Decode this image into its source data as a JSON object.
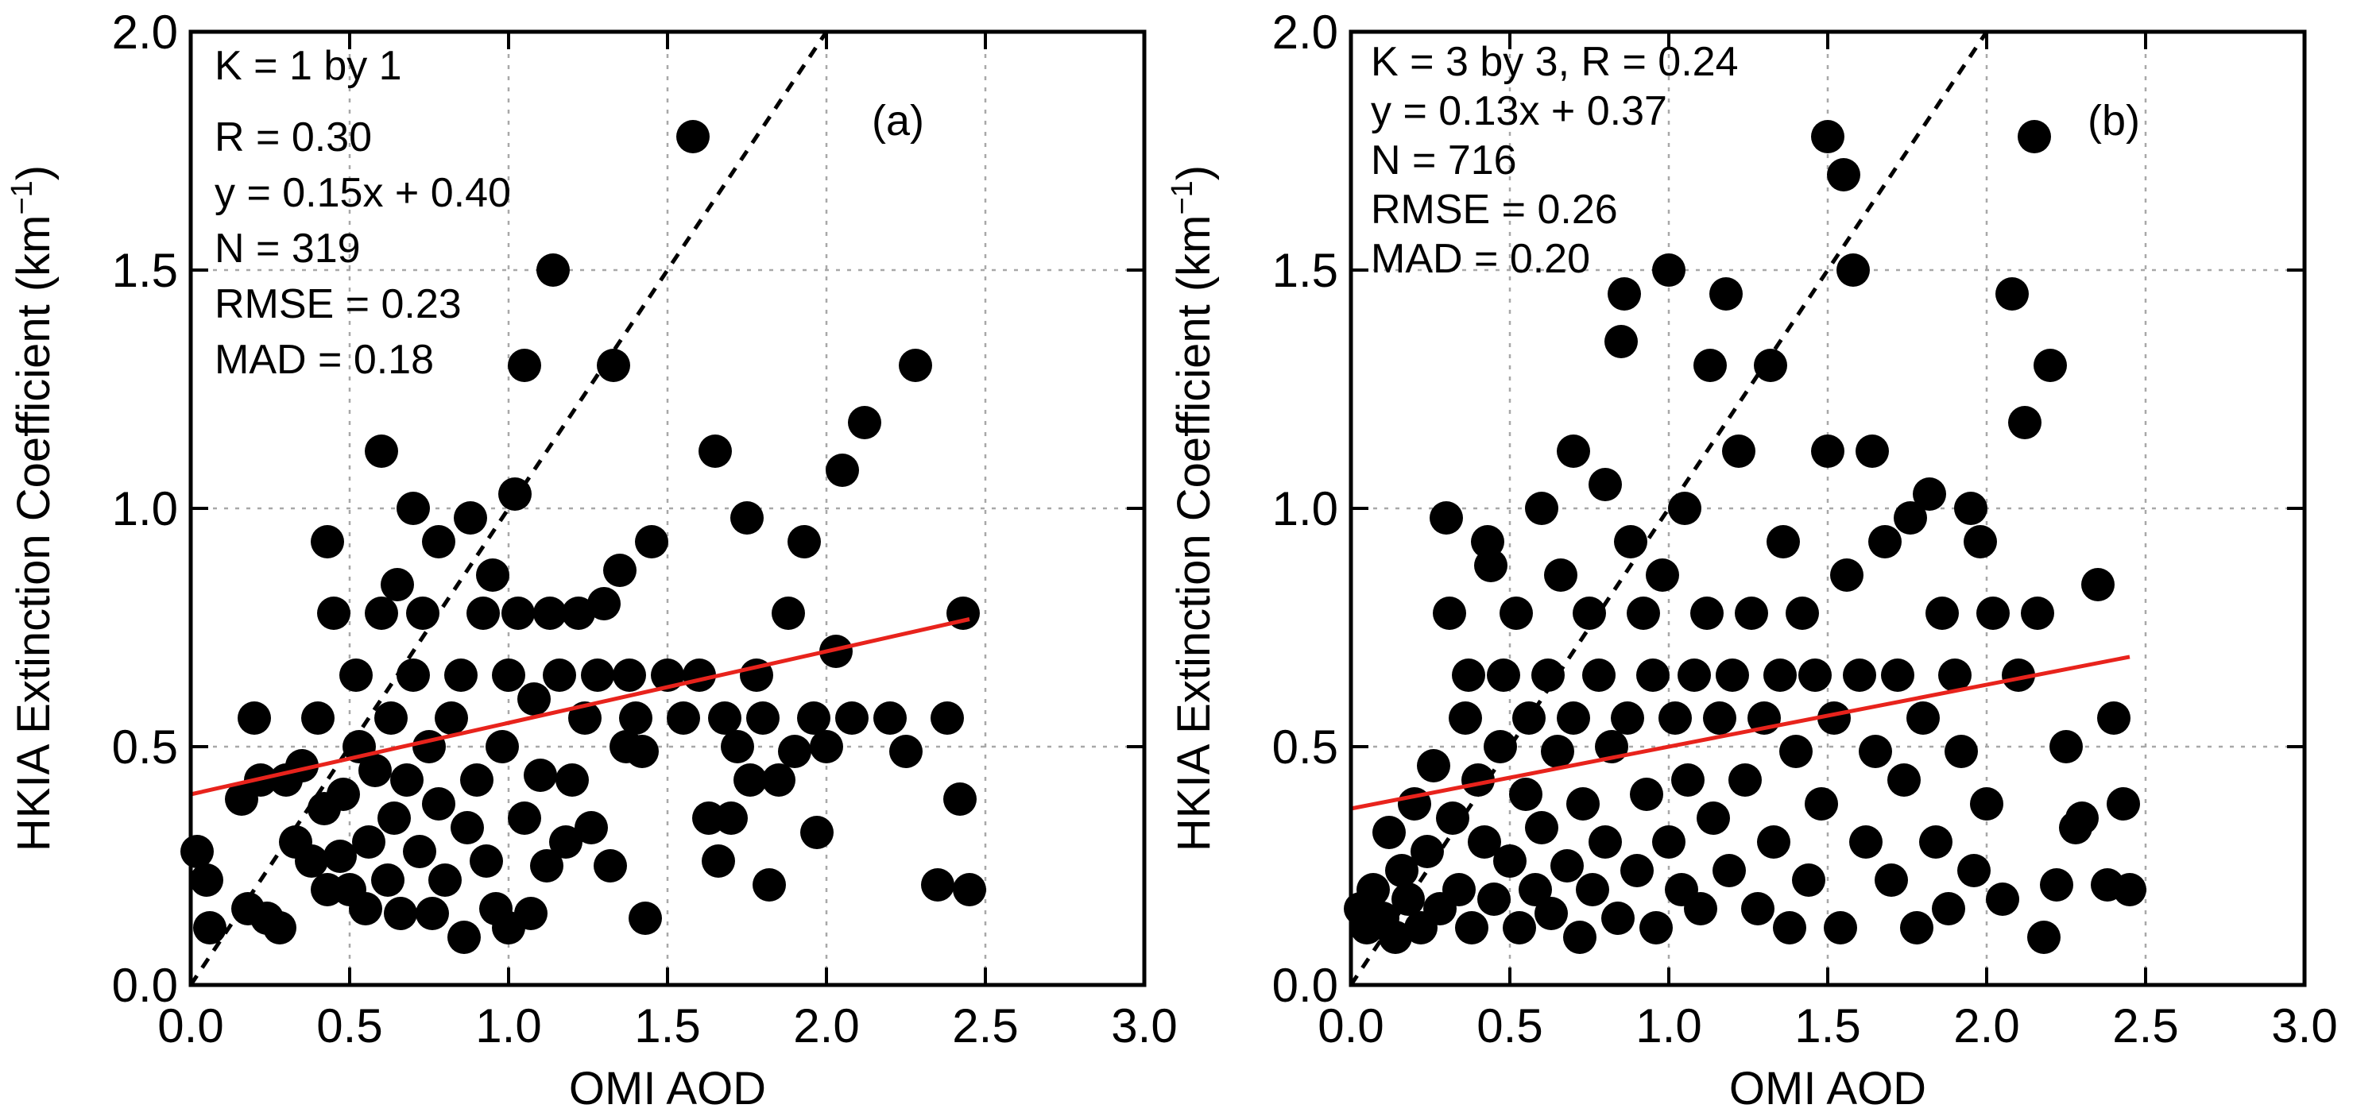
{
  "figure_type": "paired scatter plots",
  "colors": {
    "marker": "#000000",
    "fit_line": "#e8231c",
    "identity_line": "#000000",
    "grid": "#a8a8a8",
    "axes": "#000000",
    "background": "#ffffff"
  },
  "chart_data": [
    {
      "type": "scatter",
      "panel_label": "(a)",
      "xlabel": "OMI AOD",
      "ylabel": "HKIA Extinction Coefficient (km",
      "ylabel_sup": "−1",
      "ylabel_close": ")",
      "xlim": [
        0,
        3
      ],
      "ylim": [
        0,
        2
      ],
      "xticks": [
        0,
        0.5,
        1,
        1.5,
        2,
        2.5,
        3
      ],
      "xtick_labels": [
        "0.0",
        "0.5",
        "1.0",
        "1.5",
        "2.0",
        "2.5",
        "3.0"
      ],
      "yticks": [
        0,
        0.5,
        1,
        1.5,
        2
      ],
      "ytick_labels": [
        "0.0",
        "0.5",
        "1.0",
        "1.5",
        "2.0"
      ],
      "grid": true,
      "stats_text": [
        "K = 1 by 1",
        "R = 0.30",
        "y = 0.15x + 0.40",
        "N = 319",
        "RMSE = 0.23",
        "MAD = 0.18"
      ],
      "stats": {
        "K": "1 by 1",
        "R": 0.3,
        "slope": 0.15,
        "intercept": 0.4,
        "N": 319,
        "RMSE": 0.23,
        "MAD": 0.18
      },
      "fit_line": {
        "slope": 0.15,
        "intercept": 0.4,
        "x_range": [
          0,
          2.45
        ]
      },
      "identity_line": {
        "slope": 1,
        "intercept": 0
      },
      "points": [
        [
          0.02,
          0.28
        ],
        [
          0.05,
          0.22
        ],
        [
          0.06,
          0.12
        ],
        [
          0.16,
          0.39
        ],
        [
          0.18,
          0.16
        ],
        [
          0.2,
          0.56
        ],
        [
          0.22,
          0.43
        ],
        [
          0.24,
          0.14
        ],
        [
          0.28,
          0.12
        ],
        [
          0.3,
          0.43
        ],
        [
          0.33,
          0.3
        ],
        [
          0.35,
          0.46
        ],
        [
          0.38,
          0.26
        ],
        [
          0.4,
          0.56
        ],
        [
          0.42,
          0.37
        ],
        [
          0.43,
          0.2
        ],
        [
          0.43,
          0.93
        ],
        [
          0.45,
          0.78
        ],
        [
          0.47,
          0.27
        ],
        [
          0.48,
          0.4
        ],
        [
          0.5,
          0.2
        ],
        [
          0.52,
          0.65
        ],
        [
          0.53,
          0.5
        ],
        [
          0.55,
          0.16
        ],
        [
          0.56,
          0.3
        ],
        [
          0.58,
          0.45
        ],
        [
          0.6,
          0.78
        ],
        [
          0.6,
          1.12
        ],
        [
          0.62,
          0.22
        ],
        [
          0.63,
          0.56
        ],
        [
          0.64,
          0.35
        ],
        [
          0.65,
          0.84
        ],
        [
          0.66,
          0.15
        ],
        [
          0.68,
          0.43
        ],
        [
          0.7,
          0.65
        ],
        [
          0.7,
          1.0
        ],
        [
          0.72,
          0.28
        ],
        [
          0.73,
          0.78
        ],
        [
          0.75,
          0.5
        ],
        [
          0.76,
          0.15
        ],
        [
          0.78,
          0.38
        ],
        [
          0.78,
          0.93
        ],
        [
          0.8,
          0.22
        ],
        [
          0.82,
          0.56
        ],
        [
          0.85,
          0.65
        ],
        [
          0.86,
          0.1
        ],
        [
          0.87,
          0.33
        ],
        [
          0.88,
          0.98
        ],
        [
          0.9,
          0.43
        ],
        [
          0.92,
          0.78
        ],
        [
          0.93,
          0.26
        ],
        [
          0.95,
          0.86
        ],
        [
          0.96,
          0.16
        ],
        [
          0.98,
          0.5
        ],
        [
          1.0,
          0.65
        ],
        [
          1.0,
          0.12
        ],
        [
          1.02,
          1.03
        ],
        [
          1.03,
          0.78
        ],
        [
          1.05,
          0.35
        ],
        [
          1.05,
          1.3
        ],
        [
          1.07,
          0.15
        ],
        [
          1.08,
          0.6
        ],
        [
          1.1,
          0.44
        ],
        [
          1.12,
          0.25
        ],
        [
          1.13,
          0.78
        ],
        [
          1.14,
          1.5
        ],
        [
          1.16,
          0.65
        ],
        [
          1.18,
          0.3
        ],
        [
          1.2,
          0.43
        ],
        [
          1.22,
          0.78
        ],
        [
          1.24,
          0.56
        ],
        [
          1.26,
          0.33
        ],
        [
          1.28,
          0.65
        ],
        [
          1.3,
          0.8
        ],
        [
          1.32,
          0.25
        ],
        [
          1.33,
          1.3
        ],
        [
          1.35,
          0.87
        ],
        [
          1.37,
          0.5
        ],
        [
          1.38,
          0.65
        ],
        [
          1.4,
          0.56
        ],
        [
          1.42,
          0.49
        ],
        [
          1.43,
          0.14
        ],
        [
          1.45,
          0.93
        ],
        [
          1.5,
          0.65
        ],
        [
          1.55,
          0.56
        ],
        [
          1.58,
          1.78
        ],
        [
          1.6,
          0.65
        ],
        [
          1.63,
          0.35
        ],
        [
          1.65,
          1.12
        ],
        [
          1.66,
          0.26
        ],
        [
          1.68,
          0.56
        ],
        [
          1.7,
          0.35
        ],
        [
          1.72,
          0.5
        ],
        [
          1.75,
          0.98
        ],
        [
          1.76,
          0.43
        ],
        [
          1.78,
          0.65
        ],
        [
          1.8,
          0.56
        ],
        [
          1.82,
          0.21
        ],
        [
          1.85,
          0.43
        ],
        [
          1.88,
          0.78
        ],
        [
          1.9,
          0.49
        ],
        [
          1.93,
          0.93
        ],
        [
          1.96,
          0.56
        ],
        [
          1.97,
          0.32
        ],
        [
          2.0,
          0.5
        ],
        [
          2.03,
          0.7
        ],
        [
          2.05,
          1.08
        ],
        [
          2.08,
          0.56
        ],
        [
          2.12,
          1.18
        ],
        [
          2.2,
          0.56
        ],
        [
          2.25,
          0.49
        ],
        [
          2.28,
          1.3
        ],
        [
          2.35,
          0.21
        ],
        [
          2.38,
          0.56
        ],
        [
          2.42,
          0.39
        ],
        [
          2.43,
          0.78
        ],
        [
          2.45,
          0.2
        ]
      ]
    },
    {
      "type": "scatter",
      "panel_label": "(b)",
      "xlabel": "OMI AOD",
      "ylabel": "HKIA Extinction Coefficient (km",
      "ylabel_sup": "−1",
      "ylabel_close": ")",
      "xlim": [
        0,
        3
      ],
      "ylim": [
        0,
        2
      ],
      "xticks": [
        0,
        0.5,
        1,
        1.5,
        2,
        2.5,
        3
      ],
      "xtick_labels": [
        "0.0",
        "0.5",
        "1.0",
        "1.5",
        "2.0",
        "2.5",
        "3.0"
      ],
      "yticks": [
        0,
        0.5,
        1,
        1.5,
        2
      ],
      "ytick_labels": [
        "0.0",
        "0.5",
        "1.0",
        "1.5",
        "2.0"
      ],
      "grid": true,
      "stats_text": [
        "K = 3 by 3, R = 0.24",
        "y = 0.13x + 0.37",
        "N = 716",
        "RMSE = 0.26",
        "MAD = 0.20"
      ],
      "stats": {
        "K": "3 by 3",
        "R": 0.24,
        "slope": 0.13,
        "intercept": 0.37,
        "N": 716,
        "RMSE": 0.26,
        "MAD": 0.2
      },
      "fit_line": {
        "slope": 0.13,
        "intercept": 0.37,
        "x_range": [
          0,
          2.45
        ]
      },
      "identity_line": {
        "slope": 1,
        "intercept": 0
      },
      "points": [
        [
          0.03,
          0.16
        ],
        [
          0.05,
          0.12
        ],
        [
          0.07,
          0.2
        ],
        [
          0.1,
          0.14
        ],
        [
          0.12,
          0.32
        ],
        [
          0.14,
          0.1
        ],
        [
          0.16,
          0.24
        ],
        [
          0.18,
          0.18
        ],
        [
          0.2,
          0.38
        ],
        [
          0.22,
          0.12
        ],
        [
          0.24,
          0.28
        ],
        [
          0.26,
          0.46
        ],
        [
          0.28,
          0.16
        ],
        [
          0.3,
          0.98
        ],
        [
          0.31,
          0.78
        ],
        [
          0.32,
          0.35
        ],
        [
          0.34,
          0.2
        ],
        [
          0.36,
          0.56
        ],
        [
          0.37,
          0.65
        ],
        [
          0.38,
          0.12
        ],
        [
          0.4,
          0.43
        ],
        [
          0.42,
          0.3
        ],
        [
          0.43,
          0.93
        ],
        [
          0.44,
          0.88
        ],
        [
          0.45,
          0.18
        ],
        [
          0.47,
          0.5
        ],
        [
          0.48,
          0.65
        ],
        [
          0.5,
          0.26
        ],
        [
          0.52,
          0.78
        ],
        [
          0.53,
          0.12
        ],
        [
          0.55,
          0.4
        ],
        [
          0.56,
          0.56
        ],
        [
          0.58,
          0.2
        ],
        [
          0.6,
          1.0
        ],
        [
          0.6,
          0.33
        ],
        [
          0.62,
          0.65
        ],
        [
          0.63,
          0.15
        ],
        [
          0.65,
          0.49
        ],
        [
          0.66,
          0.86
        ],
        [
          0.68,
          0.25
        ],
        [
          0.7,
          1.12
        ],
        [
          0.7,
          0.56
        ],
        [
          0.72,
          0.1
        ],
        [
          0.73,
          0.38
        ],
        [
          0.75,
          0.78
        ],
        [
          0.76,
          0.2
        ],
        [
          0.78,
          0.65
        ],
        [
          0.8,
          0.3
        ],
        [
          0.8,
          1.05
        ],
        [
          0.82,
          0.5
        ],
        [
          0.84,
          0.14
        ],
        [
          0.85,
          1.35
        ],
        [
          0.86,
          1.45
        ],
        [
          0.87,
          0.56
        ],
        [
          0.88,
          0.93
        ],
        [
          0.9,
          0.24
        ],
        [
          0.92,
          0.78
        ],
        [
          0.93,
          0.4
        ],
        [
          0.95,
          0.65
        ],
        [
          0.96,
          0.12
        ],
        [
          0.98,
          0.86
        ],
        [
          1.0,
          1.5
        ],
        [
          1.0,
          0.3
        ],
        [
          1.02,
          0.56
        ],
        [
          1.04,
          0.2
        ],
        [
          1.05,
          1.0
        ],
        [
          1.06,
          0.43
        ],
        [
          1.08,
          0.65
        ],
        [
          1.1,
          0.16
        ],
        [
          1.12,
          0.78
        ],
        [
          1.13,
          1.3
        ],
        [
          1.14,
          0.35
        ],
        [
          1.16,
          0.56
        ],
        [
          1.18,
          1.45
        ],
        [
          1.19,
          0.24
        ],
        [
          1.2,
          0.65
        ],
        [
          1.22,
          1.12
        ],
        [
          1.24,
          0.43
        ],
        [
          1.26,
          0.78
        ],
        [
          1.28,
          0.16
        ],
        [
          1.3,
          0.56
        ],
        [
          1.32,
          1.3
        ],
        [
          1.33,
          0.3
        ],
        [
          1.35,
          0.65
        ],
        [
          1.36,
          0.93
        ],
        [
          1.38,
          0.12
        ],
        [
          1.4,
          0.49
        ],
        [
          1.42,
          0.78
        ],
        [
          1.44,
          0.22
        ],
        [
          1.46,
          0.65
        ],
        [
          1.48,
          0.38
        ],
        [
          1.5,
          1.78
        ],
        [
          1.5,
          1.12
        ],
        [
          1.52,
          0.56
        ],
        [
          1.54,
          0.12
        ],
        [
          1.55,
          1.7
        ],
        [
          1.56,
          0.86
        ],
        [
          1.58,
          1.5
        ],
        [
          1.6,
          0.65
        ],
        [
          1.62,
          0.3
        ],
        [
          1.64,
          1.12
        ],
        [
          1.65,
          0.49
        ],
        [
          1.68,
          0.93
        ],
        [
          1.7,
          0.22
        ],
        [
          1.72,
          0.65
        ],
        [
          1.74,
          0.43
        ],
        [
          1.76,
          0.98
        ],
        [
          1.78,
          0.12
        ],
        [
          1.8,
          0.56
        ],
        [
          1.82,
          1.03
        ],
        [
          1.84,
          0.3
        ],
        [
          1.86,
          0.78
        ],
        [
          1.88,
          0.16
        ],
        [
          1.9,
          0.65
        ],
        [
          1.92,
          0.49
        ],
        [
          1.95,
          1.0
        ],
        [
          1.96,
          0.24
        ],
        [
          1.98,
          0.93
        ],
        [
          2.0,
          0.38
        ],
        [
          2.02,
          0.78
        ],
        [
          2.05,
          0.18
        ],
        [
          2.08,
          1.45
        ],
        [
          2.1,
          0.65
        ],
        [
          2.12,
          1.18
        ],
        [
          2.15,
          1.78
        ],
        [
          2.16,
          0.78
        ],
        [
          2.18,
          0.1
        ],
        [
          2.2,
          1.3
        ],
        [
          2.22,
          0.21
        ],
        [
          2.25,
          0.5
        ],
        [
          2.28,
          0.33
        ],
        [
          2.3,
          0.35
        ],
        [
          2.35,
          0.84
        ],
        [
          2.38,
          0.21
        ],
        [
          2.4,
          0.56
        ],
        [
          2.43,
          0.38
        ],
        [
          2.45,
          0.2
        ]
      ]
    }
  ]
}
